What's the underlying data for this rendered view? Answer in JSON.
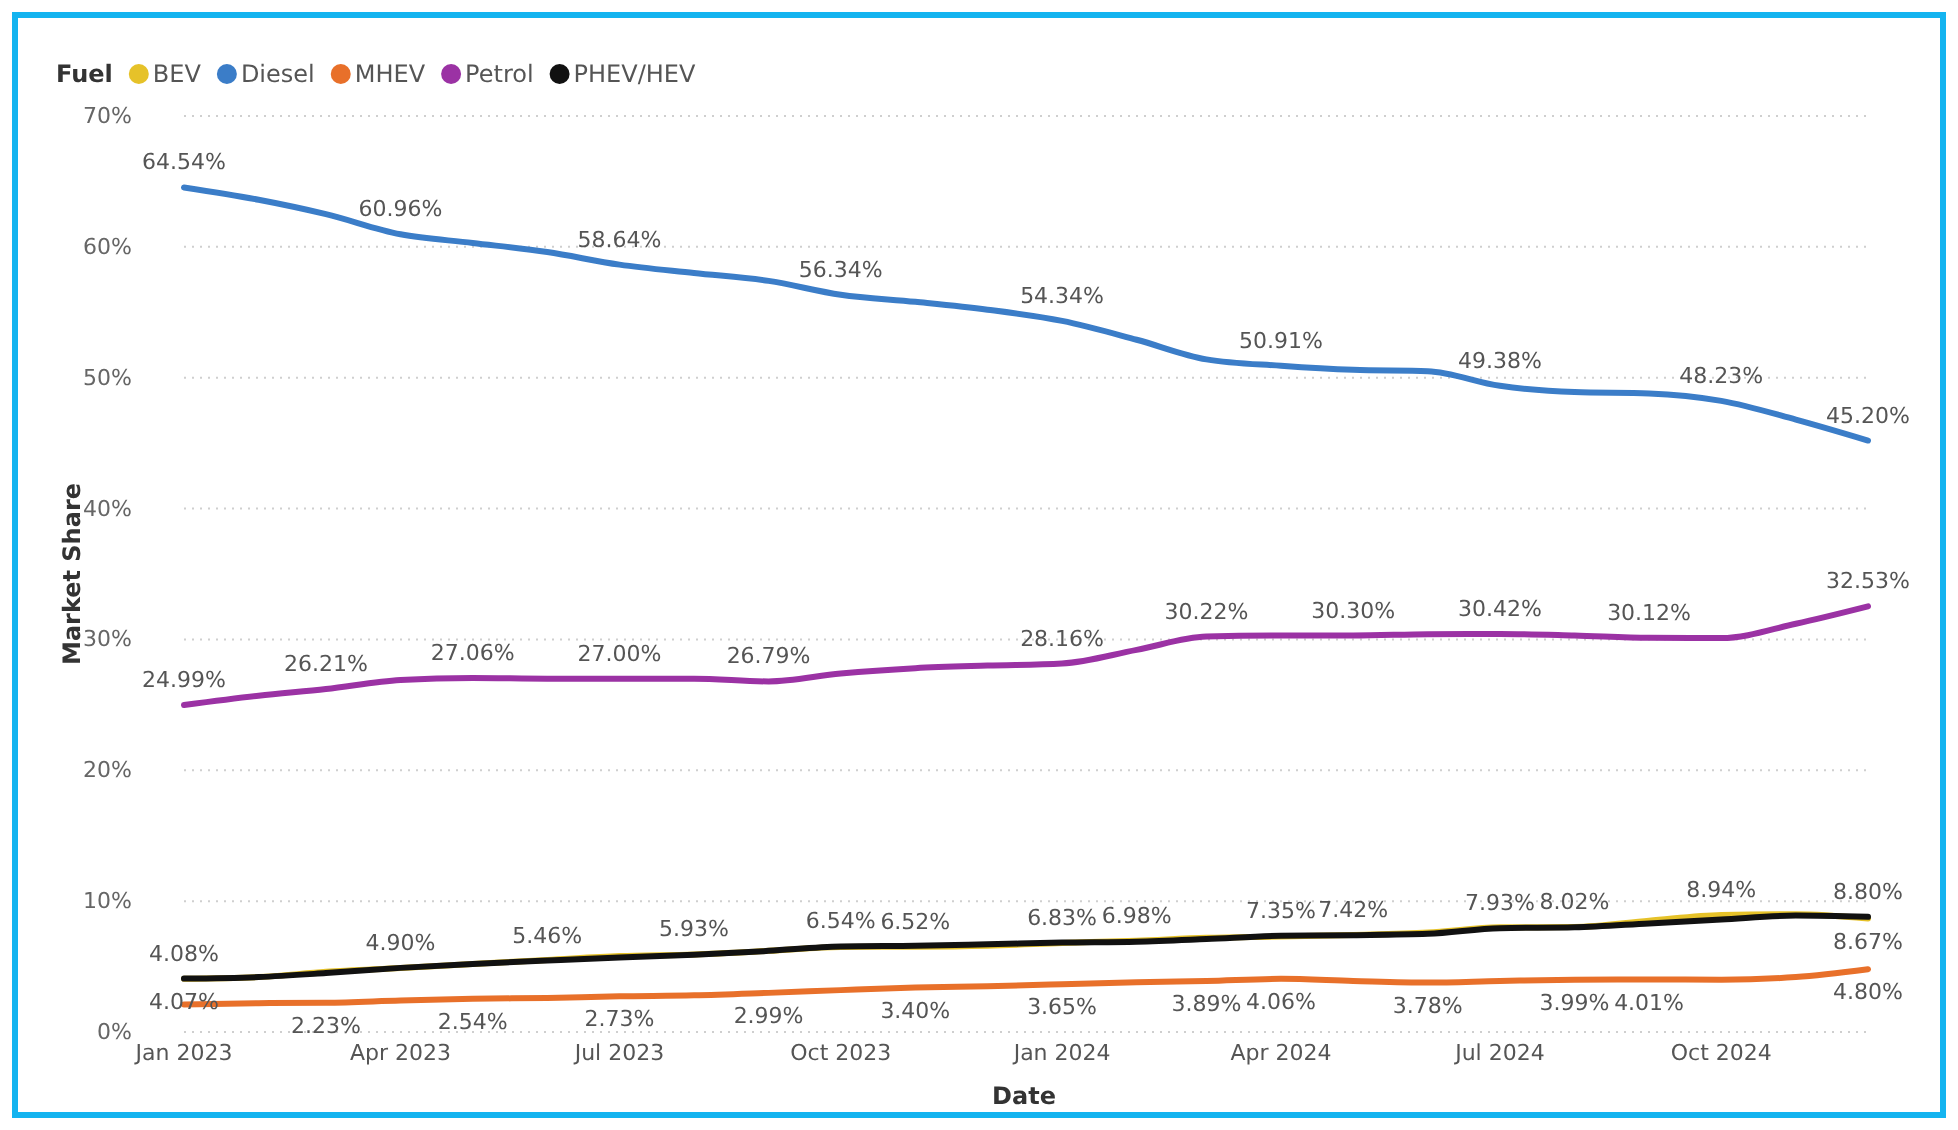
{
  "chart_data": {
    "type": "line",
    "xlabel": "Date",
    "ylabel": "Market Share",
    "legend_title": "Fuel",
    "legend": "top left",
    "grid": "y",
    "marker": "none",
    "line_style": "solid",
    "x": [
      "2023-01",
      "2023-02",
      "2023-03",
      "2023-04",
      "2023-05",
      "2023-06",
      "2023-07",
      "2023-08",
      "2023-09",
      "2023-10",
      "2023-11",
      "2023-12",
      "2024-01",
      "2024-02",
      "2024-03",
      "2024-04",
      "2024-05",
      "2024-06",
      "2024-07",
      "2024-08",
      "2024-09",
      "2024-10",
      "2024-11",
      "2024-12"
    ],
    "xlim": [
      "2023-01",
      "2024-12"
    ],
    "xticks": [
      {
        "value": "2023-01",
        "label": "Jan 2023"
      },
      {
        "value": "2023-04",
        "label": "Apr 2023"
      },
      {
        "value": "2023-07",
        "label": "Jul 2023"
      },
      {
        "value": "2023-10",
        "label": "Oct 2023"
      },
      {
        "value": "2024-01",
        "label": "Jan 2024"
      },
      {
        "value": "2024-04",
        "label": "Apr 2024"
      },
      {
        "value": "2024-07",
        "label": "Jul 2024"
      },
      {
        "value": "2024-10",
        "label": "Oct 2024"
      }
    ],
    "ylim": [
      0,
      70
    ],
    "yticks": [
      {
        "value": 0,
        "label": "0%"
      },
      {
        "value": 10,
        "label": "10%"
      },
      {
        "value": 20,
        "label": "20%"
      },
      {
        "value": 30,
        "label": "30%"
      },
      {
        "value": 40,
        "label": "40%"
      },
      {
        "value": 50,
        "label": "50%"
      },
      {
        "value": 60,
        "label": "60%"
      },
      {
        "value": 70,
        "label": "70%"
      }
    ],
    "series": [
      {
        "name": "BEV",
        "color": "#e6c229",
        "values": [
          4.07,
          4.2,
          4.6,
          4.9,
          5.2,
          5.5,
          5.8,
          5.93,
          6.2,
          6.5,
          6.52,
          6.6,
          6.8,
          6.98,
          7.2,
          7.3,
          7.42,
          7.6,
          8.0,
          8.02,
          8.5,
          8.94,
          9.0,
          8.67
        ],
        "value_labels": [
          "4.07%",
          null,
          null,
          null,
          null,
          null,
          null,
          "5.93%",
          null,
          null,
          "6.52%",
          null,
          null,
          "6.98%",
          null,
          null,
          "7.42%",
          null,
          null,
          "8.02%",
          null,
          "8.94%",
          null,
          "8.67%"
        ]
      },
      {
        "name": "Diesel",
        "color": "#3b7dc8",
        "values": [
          64.54,
          63.6,
          62.5,
          60.96,
          60.3,
          59.6,
          58.64,
          58.0,
          57.4,
          56.34,
          55.8,
          55.2,
          54.34,
          52.9,
          51.4,
          50.91,
          50.6,
          50.5,
          49.38,
          48.9,
          48.8,
          48.23,
          46.8,
          45.2
        ],
        "value_labels": [
          "64.54%",
          null,
          null,
          "60.96%",
          null,
          null,
          "58.64%",
          null,
          null,
          "56.34%",
          null,
          null,
          "54.34%",
          null,
          null,
          "50.91%",
          null,
          null,
          "49.38%",
          null,
          null,
          "48.23%",
          null,
          "45.20%"
        ]
      },
      {
        "name": "MHEV",
        "color": "#e8702a",
        "values": [
          2.1,
          2.2,
          2.23,
          2.4,
          2.54,
          2.6,
          2.73,
          2.8,
          2.99,
          3.2,
          3.4,
          3.5,
          3.65,
          3.8,
          3.89,
          4.06,
          3.9,
          3.78,
          3.9,
          3.99,
          4.01,
          4.0,
          4.2,
          4.8
        ],
        "value_labels": [
          null,
          null,
          "2.23%",
          null,
          "2.54%",
          null,
          "2.73%",
          null,
          "2.99%",
          null,
          "3.40%",
          null,
          "3.65%",
          null,
          "3.89%",
          "4.06%",
          null,
          "3.78%",
          null,
          "3.99%",
          "4.01%",
          null,
          null,
          "4.80%"
        ]
      },
      {
        "name": "Petrol",
        "color": "#9b32a4",
        "values": [
          24.99,
          25.7,
          26.21,
          26.9,
          27.06,
          27.0,
          27.0,
          27.0,
          26.79,
          27.4,
          27.8,
          28.0,
          28.16,
          29.2,
          30.22,
          30.3,
          30.3,
          30.4,
          30.42,
          30.3,
          30.12,
          30.1,
          31.2,
          32.53
        ],
        "value_labels": [
          "24.99%",
          null,
          "26.21%",
          null,
          "27.06%",
          null,
          "27.00%",
          null,
          "26.79%",
          null,
          null,
          null,
          "28.16%",
          null,
          "30.22%",
          null,
          "30.30%",
          null,
          "30.42%",
          null,
          "30.12%",
          null,
          null,
          "32.53%"
        ]
      },
      {
        "name": "PHEV/HEV",
        "color": "#111111",
        "values": [
          4.08,
          4.2,
          4.5,
          4.9,
          5.2,
          5.46,
          5.7,
          5.9,
          6.2,
          6.54,
          6.6,
          6.7,
          6.83,
          6.9,
          7.1,
          7.35,
          7.4,
          7.5,
          7.93,
          8.0,
          8.3,
          8.6,
          8.9,
          8.8
        ],
        "value_labels": [
          "4.08%",
          null,
          null,
          "4.90%",
          null,
          "5.46%",
          null,
          null,
          null,
          "6.54%",
          null,
          null,
          "6.83%",
          null,
          null,
          "7.35%",
          null,
          null,
          "7.93%",
          null,
          null,
          null,
          null,
          "8.80%"
        ]
      }
    ]
  }
}
